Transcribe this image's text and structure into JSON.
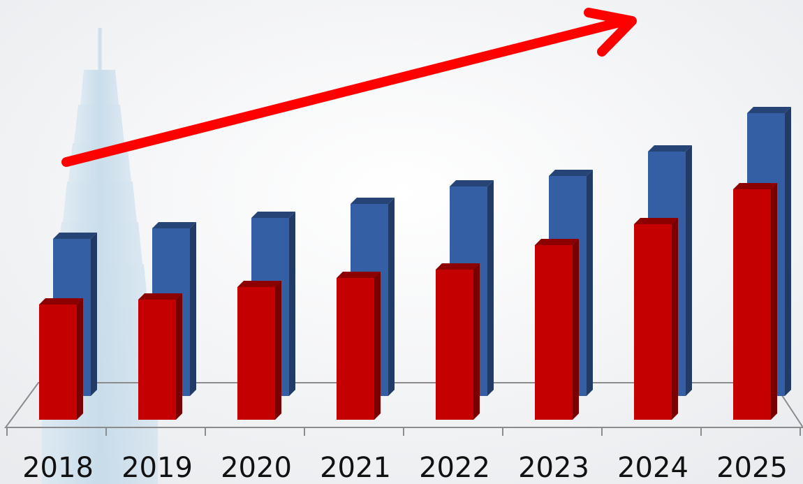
{
  "chart_data": {
    "type": "bar",
    "categories": [
      "2018",
      "2019",
      "2020",
      "2021",
      "2022",
      "2023",
      "2024",
      "2025"
    ],
    "series": [
      {
        "values": [
          225,
          240,
          255,
          275,
          300,
          315,
          350,
          405
        ],
        "color": "#355fa4"
      },
      {
        "values": [
          165,
          172,
          190,
          203,
          215,
          250,
          280,
          330
        ],
        "color": "#c40000"
      }
    ],
    "ylim": [
      0,
      450
    ],
    "grid": false,
    "legend": "none",
    "annotations": [
      {
        "type": "trend-arrow",
        "direction": "upward",
        "color": "#ff0000"
      }
    ]
  }
}
